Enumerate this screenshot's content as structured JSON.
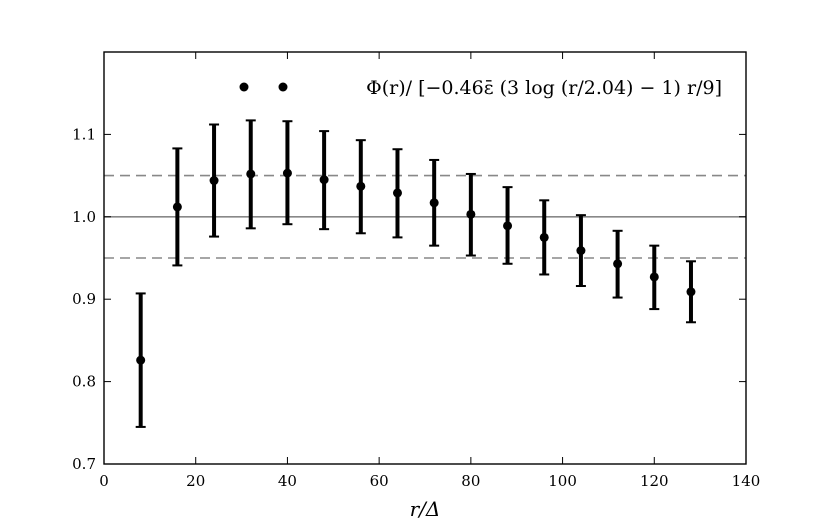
{
  "chart_data": {
    "type": "scatter",
    "xlabel": "r/Δ",
    "ylabel": "",
    "xlim": [
      0,
      140
    ],
    "ylim": [
      0.7,
      1.2
    ],
    "x_ticks": [
      0,
      20,
      40,
      60,
      80,
      100,
      120,
      140
    ],
    "y_ticks": [
      0.7,
      0.8,
      0.9,
      1.0,
      1.1
    ],
    "x_tick_labels": [
      "0",
      "20",
      "40",
      "60",
      "80",
      "100",
      "120",
      "140"
    ],
    "y_tick_labels": [
      "0.7",
      "0.8",
      "0.9",
      "1.0",
      "1.1"
    ],
    "grid": false,
    "legend_position": "top-right",
    "series": [
      {
        "name": "Φ(r)/ [−0.46ε̄ (3 log (r/2.04) − 1) r/9]",
        "style": "points-with-errorbars",
        "color": "#000000",
        "x": [
          8,
          16,
          24,
          32,
          40,
          48,
          56,
          64,
          72,
          80,
          88,
          96,
          104,
          112,
          120,
          128
        ],
        "y": [
          0.826,
          1.012,
          1.044,
          1.052,
          1.053,
          1.045,
          1.037,
          1.029,
          1.017,
          1.003,
          0.989,
          0.975,
          0.959,
          0.943,
          0.927,
          0.909
        ],
        "yerr_low": [
          0.745,
          0.941,
          0.976,
          0.986,
          0.991,
          0.985,
          0.98,
          0.975,
          0.965,
          0.953,
          0.943,
          0.93,
          0.916,
          0.902,
          0.888,
          0.872
        ],
        "yerr_high": [
          0.907,
          1.083,
          1.112,
          1.117,
          1.116,
          1.104,
          1.093,
          1.082,
          1.069,
          1.052,
          1.036,
          1.02,
          1.002,
          0.983,
          0.965,
          0.946
        ]
      }
    ],
    "reference_lines": [
      {
        "y": 1.0,
        "style": "solid",
        "color": "#888888"
      },
      {
        "y": 1.05,
        "style": "dashed",
        "color": "#888888"
      },
      {
        "y": 0.95,
        "style": "dashed",
        "color": "#888888"
      }
    ]
  }
}
